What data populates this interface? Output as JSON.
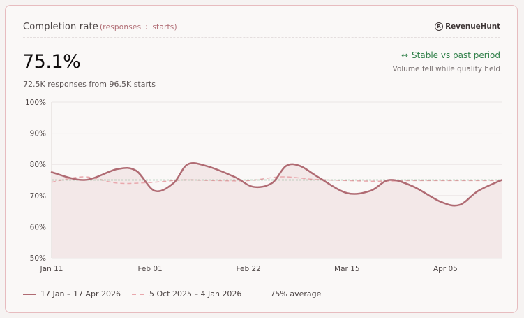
{
  "card": {
    "title": "Completion rate",
    "subtitle": "(responses ÷ starts)",
    "brand": "RevenueHunt",
    "brand_icon": "revenuehunt-logo-icon"
  },
  "kpi": {
    "value": "75.1%",
    "detail": "72.5K responses from 96.5K starts"
  },
  "trend": {
    "icon": "↔",
    "label": "Stable vs past period",
    "note": "Volume fell while quality held",
    "color": "#2f7f48"
  },
  "colors": {
    "current": "#b06b73",
    "current_fill": "#f3e8e8",
    "previous": "#e9a8ad",
    "average": "#2f7f48",
    "grid": "#ebe6e5",
    "tick_text": "#4e4646"
  },
  "legend": {
    "current": "17 Jan – 17 Apr 2026",
    "previous": "5 Oct 2025 – 4 Jan 2026",
    "average": "75% average"
  },
  "chart_data": {
    "type": "line",
    "x_domain": [
      "2026-01-11",
      "2026-04-17"
    ],
    "x_ticks": [
      {
        "date": "2026-01-11",
        "label": "Jan 11"
      },
      {
        "date": "2026-02-01",
        "label": "Feb 01"
      },
      {
        "date": "2026-02-22",
        "label": "Feb 22"
      },
      {
        "date": "2026-03-15",
        "label": "Mar 15"
      },
      {
        "date": "2026-04-05",
        "label": "Apr 05"
      }
    ],
    "y_ticks": [
      "50%",
      "60%",
      "70%",
      "80%",
      "90%",
      "100%"
    ],
    "ylim": [
      50,
      100
    ],
    "grid": true,
    "legend_position": "bottom-left",
    "series": [
      {
        "name": "17 Jan – 17 Apr 2026",
        "style": "solid-area",
        "x": [
          "2026-01-11",
          "2026-01-18",
          "2026-01-25",
          "2026-01-29",
          "2026-02-02",
          "2026-02-06",
          "2026-02-09",
          "2026-02-13",
          "2026-02-19",
          "2026-02-23",
          "2026-02-27",
          "2026-03-02",
          "2026-03-05",
          "2026-03-09",
          "2026-03-15",
          "2026-03-20",
          "2026-03-24",
          "2026-03-29",
          "2026-04-04",
          "2026-04-08",
          "2026-04-12",
          "2026-04-17"
        ],
        "values": [
          77.5,
          75.0,
          78.5,
          78.0,
          71.5,
          74.0,
          80.0,
          79.5,
          76.0,
          72.8,
          74.0,
          79.5,
          79.5,
          75.8,
          70.8,
          71.5,
          75.0,
          73.0,
          68.0,
          67.0,
          71.5,
          75.0
        ]
      },
      {
        "name": "5 Oct 2025 – 4 Jan 2026",
        "style": "dashed",
        "x": [
          "2026-01-11",
          "2026-01-18",
          "2026-01-25",
          "2026-02-01",
          "2026-02-08",
          "2026-02-15",
          "2026-02-22",
          "2026-03-01",
          "2026-03-08",
          "2026-03-15",
          "2026-03-22",
          "2026-03-29",
          "2026-04-05",
          "2026-04-12",
          "2026-04-17"
        ],
        "values": [
          74.3,
          76.0,
          74.0,
          74.2,
          75.0,
          74.8,
          74.8,
          76.0,
          75.2,
          74.8,
          74.6,
          74.8,
          74.8,
          74.8,
          74.8
        ]
      },
      {
        "name": "75% average",
        "style": "dotted",
        "x": [
          "2026-01-11",
          "2026-04-17"
        ],
        "values": [
          75,
          75
        ]
      }
    ]
  }
}
